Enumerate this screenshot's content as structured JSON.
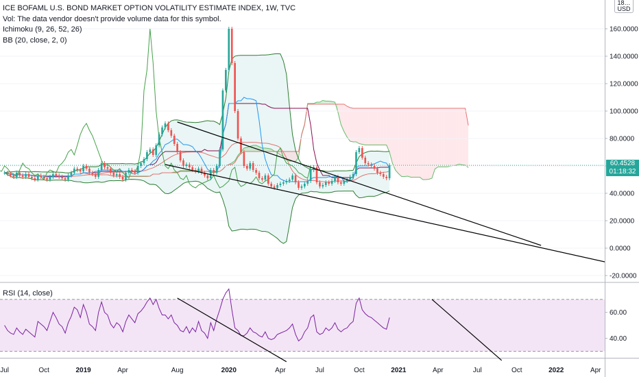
{
  "legend": {
    "title": "ICE BOFAML U.S. BOND MARKET OPTION VOLATILITY ESTIMATE INDEX, 1W, TVC",
    "volume_note": "Vol: The data vendor doesn't provide volume data for this symbol.",
    "ichimoku": "Ichimoku (9, 26, 52, 26)",
    "bb": "BB (20, close, 2, 0)"
  },
  "rsi_label": "RSI (14, close)",
  "unit": {
    "top": "18…",
    "code": "USD"
  },
  "last_price": {
    "value": "60.4528",
    "countdown": "01:18:32"
  },
  "colors": {
    "up": "#26a69a",
    "down": "#ef5350",
    "last_tag": "#26a69a",
    "bb": "#2e7d32",
    "tenkan": "#2196f3",
    "kijun": "#880e4f",
    "lagging": "#43a047",
    "cloud_bull": "#a5d6a7",
    "cloud_bear": "#ffcdd2",
    "rsi": "#7b1fa2",
    "rsi_band": "#f3e5f5",
    "trendline": "#000000"
  },
  "chart_data": [
    {
      "type": "candlestick",
      "title": "ICE BOFAML U.S. BOND MARKET OPTION VOLATILITY ESTIMATE INDEX, 1W, TVC",
      "x_tick_labels": [
        "Jul",
        "Oct",
        "2019",
        "Apr",
        "Aug",
        "2020",
        "Apr",
        "Jul",
        "Oct",
        "2021",
        "Apr",
        "Jul",
        "Oct",
        "2022",
        "Apr"
      ],
      "x_tick_positions": [
        0,
        13,
        26,
        39,
        57,
        74,
        91,
        104,
        117,
        130,
        143,
        156,
        169,
        182,
        195
      ],
      "y_tick_labels": [
        "-20.0000",
        "0.0000",
        "20.0000",
        "40.0000",
        "60.0000",
        "80.0000",
        "100.0000",
        "120.0000",
        "140.0000",
        "160.0000"
      ],
      "y_ticks": [
        -20,
        0,
        20,
        40,
        60,
        80,
        100,
        120,
        140,
        160
      ],
      "ylim": [
        -24,
        181
      ],
      "xlim": [
        -1.5,
        198
      ],
      "last_value": 60.45,
      "close": [
        55,
        54,
        53,
        52,
        55,
        53,
        52,
        54,
        52,
        51,
        50,
        53,
        52,
        51,
        50,
        52,
        54,
        53,
        52,
        51,
        50,
        53,
        55,
        58,
        57,
        56,
        60,
        58,
        55,
        54,
        52,
        57,
        62,
        59,
        58,
        55,
        53,
        54,
        52,
        50,
        55,
        57,
        56,
        55,
        60,
        62,
        65,
        70,
        72,
        68,
        75,
        83,
        88,
        91,
        86,
        82,
        76,
        70,
        64,
        60,
        61,
        59,
        57,
        56,
        58,
        55,
        53,
        51,
        57,
        55,
        60,
        72,
        115,
        130,
        160,
        135,
        100,
        80,
        70,
        60,
        58,
        62,
        57,
        55,
        51,
        50,
        53,
        47,
        45,
        44,
        46,
        47,
        48,
        49,
        50,
        53,
        48,
        44,
        45,
        47,
        49,
        57,
        59,
        48,
        45,
        46,
        48,
        47,
        49,
        52,
        48,
        47,
        49,
        50,
        52,
        54,
        70,
        73,
        66,
        62,
        61,
        60,
        58,
        55,
        54,
        52,
        51,
        60.45
      ],
      "rsi": [
        50,
        46,
        44,
        43,
        48,
        45,
        43,
        47,
        45,
        43,
        41,
        53,
        51,
        49,
        46,
        53,
        60,
        56,
        51,
        49,
        44,
        52,
        57,
        64,
        62,
        56,
        66,
        60,
        51,
        49,
        46,
        60,
        68,
        60,
        58,
        51,
        48,
        52,
        50,
        45,
        53,
        58,
        55,
        52,
        59,
        61,
        64,
        68,
        71,
        66,
        70,
        63,
        58,
        58,
        55,
        58,
        52,
        50,
        46,
        45,
        49,
        44,
        48,
        45,
        53,
        46,
        44,
        40,
        52,
        46,
        55,
        62,
        70,
        75,
        78,
        62,
        48,
        46,
        42,
        42,
        44,
        48,
        45,
        44,
        42,
        41,
        45,
        40,
        39,
        40,
        43,
        44,
        45,
        46,
        48,
        51,
        43,
        38,
        40,
        45,
        48,
        56,
        58,
        45,
        43,
        44,
        48,
        46,
        48,
        52,
        47,
        45,
        47,
        48,
        51,
        53,
        67,
        71,
        62,
        59,
        57,
        56,
        54,
        52,
        50,
        48,
        47,
        56
      ],
      "rsi_ylim": [
        25,
        82
      ],
      "rsi_ticks": [
        40,
        60
      ],
      "rsi_band": [
        30,
        70
      ],
      "trendlines_price": [
        [
          57,
          92,
          177,
          2
        ],
        [
          53,
          61,
          198,
          -10
        ]
      ],
      "trendlines_rsi": [
        [
          57,
          71,
          93,
          22
        ],
        [
          141,
          70,
          164,
          23
        ]
      ]
    }
  ]
}
